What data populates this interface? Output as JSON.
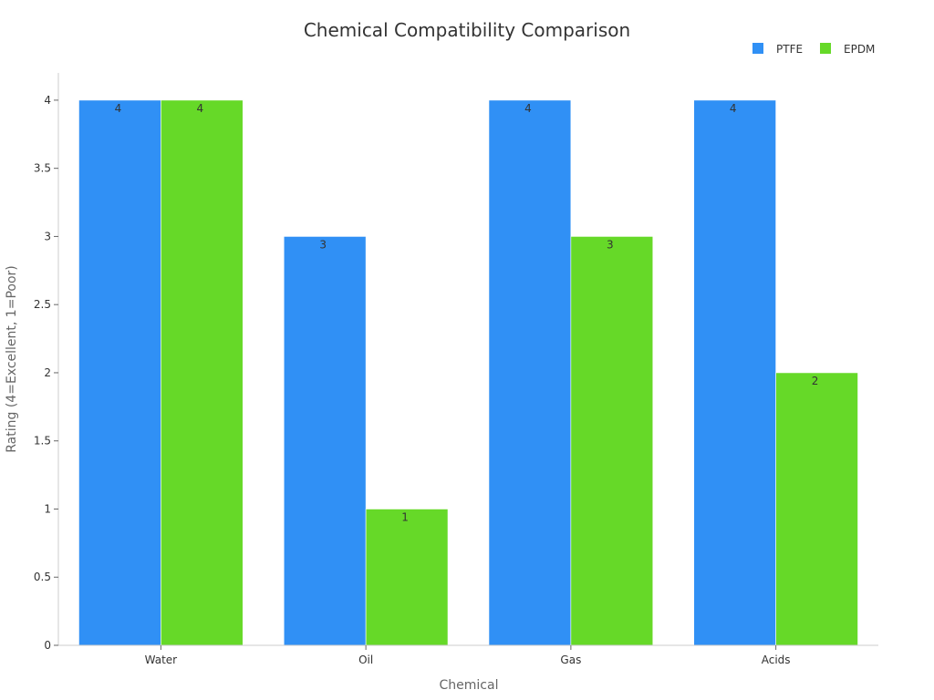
{
  "chart_data": {
    "type": "bar",
    "title": "Chemical Compatibility Comparison",
    "xlabel": "Chemical",
    "ylabel": "Rating (4=Excellent, 1=Poor)",
    "categories": [
      "Water",
      "Oil",
      "Gas",
      "Acids"
    ],
    "series": [
      {
        "name": "PTFE",
        "values": [
          4,
          3,
          4,
          4
        ],
        "color": "#3090f5"
      },
      {
        "name": "EPDM",
        "values": [
          4,
          1,
          3,
          2
        ],
        "color": "#66d928"
      }
    ],
    "ylim": [
      0,
      4.2
    ],
    "yticks": [
      "0",
      "0.5",
      "1",
      "1.5",
      "2",
      "2.5",
      "3",
      "3.5",
      "4"
    ],
    "legend_position": "top-right",
    "grid": false
  }
}
